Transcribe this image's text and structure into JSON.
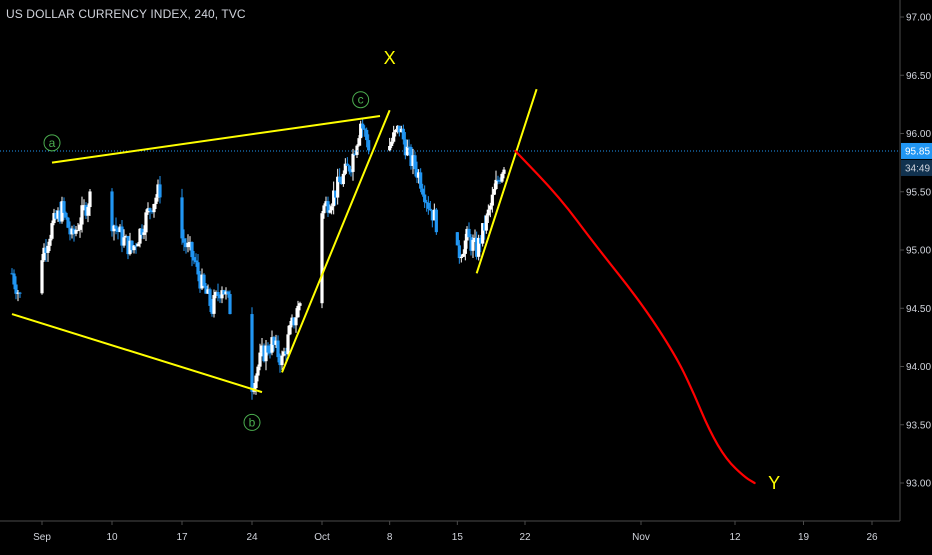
{
  "header": {
    "title": "US DOLLAR CURRENCY INDEX, 240, TVC"
  },
  "colors": {
    "background": "#000000",
    "axis": "#d1d4dc",
    "candle_up": "#ffffff",
    "candle_down": "#2196f3",
    "trendline": "#ffff00",
    "projection": "#ff0000",
    "price_line": "#2196f3",
    "wave_label": "#4caf50",
    "price_badge": "#2196f3"
  },
  "chart_data": {
    "type": "candlestick",
    "ylim": [
      92.55,
      97.1
    ],
    "yticks": [
      "97.00",
      "96.50",
      "96.00",
      "95.50",
      "95.00",
      "94.50",
      "94.00",
      "93.50",
      "93.00"
    ],
    "xticks": [
      "Sep",
      "10",
      "17",
      "24",
      "Oct",
      "8",
      "15",
      "22",
      "Nov",
      "12",
      "19",
      "26"
    ],
    "x_range": [
      "2018-09-03",
      "2018-11-30"
    ],
    "current_price": {
      "value": "95.85",
      "countdown": "34:49"
    },
    "ohlc_path": [
      [
        "2018-08-31",
        94.8
      ],
      [
        "2018-09-01",
        94.55
      ],
      [
        "2018-09-02",
        94.72
      ],
      [
        "2018-09-04",
        95.2
      ],
      [
        "2018-09-05",
        95.35
      ],
      [
        "2018-09-06",
        95.1
      ],
      [
        "2018-09-07",
        95.3
      ],
      [
        "2018-09-08",
        95.5
      ],
      [
        "2018-09-09",
        95.65
      ],
      [
        "2018-09-10",
        95.25
      ],
      [
        "2018-09-11",
        95.1
      ],
      [
        "2018-09-12",
        95.0
      ],
      [
        "2018-09-13",
        95.2
      ],
      [
        "2018-09-14",
        95.4
      ],
      [
        "2018-09-15",
        95.55
      ],
      [
        "2018-09-16",
        95.3
      ],
      [
        "2018-09-17",
        95.1
      ],
      [
        "2018-09-18",
        94.95
      ],
      [
        "2018-09-19",
        94.7
      ],
      [
        "2018-09-20",
        94.5
      ],
      [
        "2018-09-21",
        94.7
      ],
      [
        "2018-09-22",
        94.45
      ],
      [
        "2018-09-23",
        94.1
      ],
      [
        "2018-09-24",
        93.85
      ],
      [
        "2018-09-25",
        94.1
      ],
      [
        "2018-09-26",
        94.2
      ],
      [
        "2018-09-27",
        94.05
      ],
      [
        "2018-09-28",
        94.35
      ],
      [
        "2018-09-29",
        94.6
      ],
      [
        "2018-09-30",
        95.0
      ],
      [
        "2018-10-01",
        95.35
      ],
      [
        "2018-10-02",
        95.45
      ],
      [
        "2018-10-03",
        95.6
      ],
      [
        "2018-10-04",
        95.75
      ],
      [
        "2018-10-05",
        96.1
      ],
      [
        "2018-10-06",
        95.85
      ],
      [
        "2018-10-07",
        95.7
      ],
      [
        "2018-10-08",
        95.9
      ],
      [
        "2018-10-09",
        96.05
      ],
      [
        "2018-10-10",
        95.8
      ],
      [
        "2018-10-11",
        95.65
      ],
      [
        "2018-10-12",
        95.4
      ],
      [
        "2018-10-13",
        95.2
      ],
      [
        "2018-10-14",
        95.05
      ],
      [
        "2018-10-15",
        94.95
      ],
      [
        "2018-10-16",
        95.1
      ],
      [
        "2018-10-17",
        95.0
      ],
      [
        "2018-10-18",
        95.25
      ],
      [
        "2018-10-19",
        95.55
      ],
      [
        "2018-10-20",
        95.8
      ],
      [
        "2018-10-21",
        95.9
      ]
    ],
    "trendlines": [
      {
        "name": "upper-channel",
        "from": [
          "2018-09-04",
          95.75
        ],
        "to": [
          "2018-10-07",
          96.15
        ]
      },
      {
        "name": "lower-channel",
        "from": [
          "2018-08-31",
          94.45
        ],
        "to": [
          "2018-09-25",
          93.78
        ]
      },
      {
        "name": "impulse-up-1",
        "from": [
          "2018-09-27",
          93.95
        ],
        "to": [
          "2018-10-08",
          96.2
        ]
      },
      {
        "name": "impulse-up-2",
        "from": [
          "2018-10-17",
          94.8
        ],
        "to": [
          "2018-10-23",
          96.38
        ]
      }
    ],
    "projection": [
      [
        "2018-10-21",
        95.85
      ],
      [
        "2018-10-25",
        95.45
      ],
      [
        "2018-10-28",
        95.05
      ],
      [
        "2018-11-01",
        94.55
      ],
      [
        "2018-11-05",
        94.1
      ],
      [
        "2018-11-07",
        93.8
      ],
      [
        "2018-11-09",
        93.45
      ],
      [
        "2018-11-11",
        93.2
      ],
      [
        "2018-11-13",
        93.05
      ],
      [
        "2018-11-14",
        93.0
      ]
    ],
    "wave_labels": [
      {
        "text": "a",
        "circled": true,
        "at": [
          "2018-09-04",
          95.92
        ]
      },
      {
        "text": "b",
        "circled": true,
        "at": [
          "2018-09-24",
          93.52
        ]
      },
      {
        "text": "c",
        "circled": true,
        "at": [
          "2018-10-05",
          96.29
        ]
      },
      {
        "text": "X",
        "circled": false,
        "at": [
          "2018-10-08",
          96.65
        ]
      },
      {
        "text": "Y",
        "circled": false,
        "at": [
          "2018-11-16",
          93.0
        ]
      }
    ]
  }
}
